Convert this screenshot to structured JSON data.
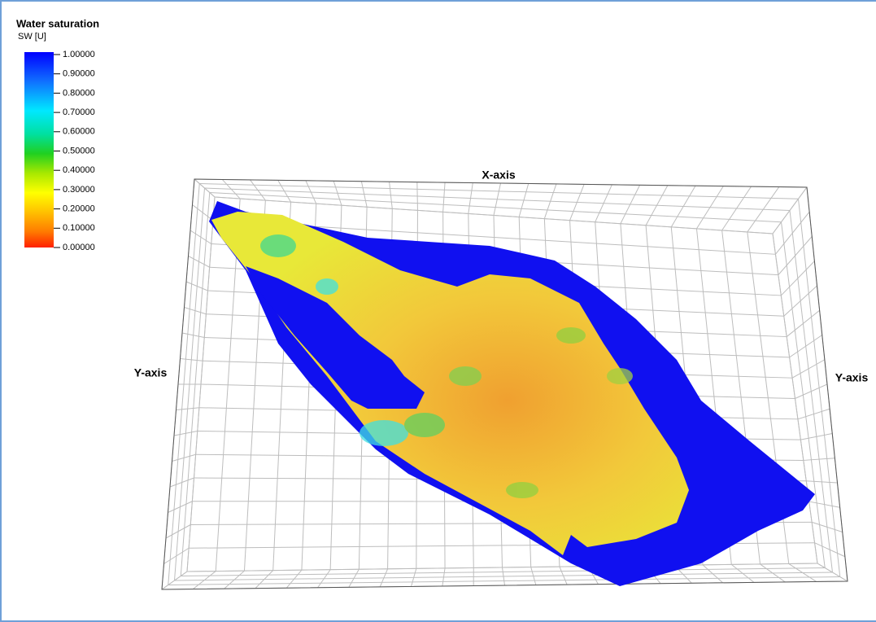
{
  "legend": {
    "title": "Water saturation",
    "unit": "SW [U]",
    "ticks": [
      "1.00000",
      "0.90000",
      "0.80000",
      "0.70000",
      "0.60000",
      "0.50000",
      "0.40000",
      "0.30000",
      "0.20000",
      "0.10000",
      "0.00000"
    ]
  },
  "axes": {
    "x": "X-axis",
    "y_left": "Y-axis",
    "y_right": "Y-axis"
  }
}
